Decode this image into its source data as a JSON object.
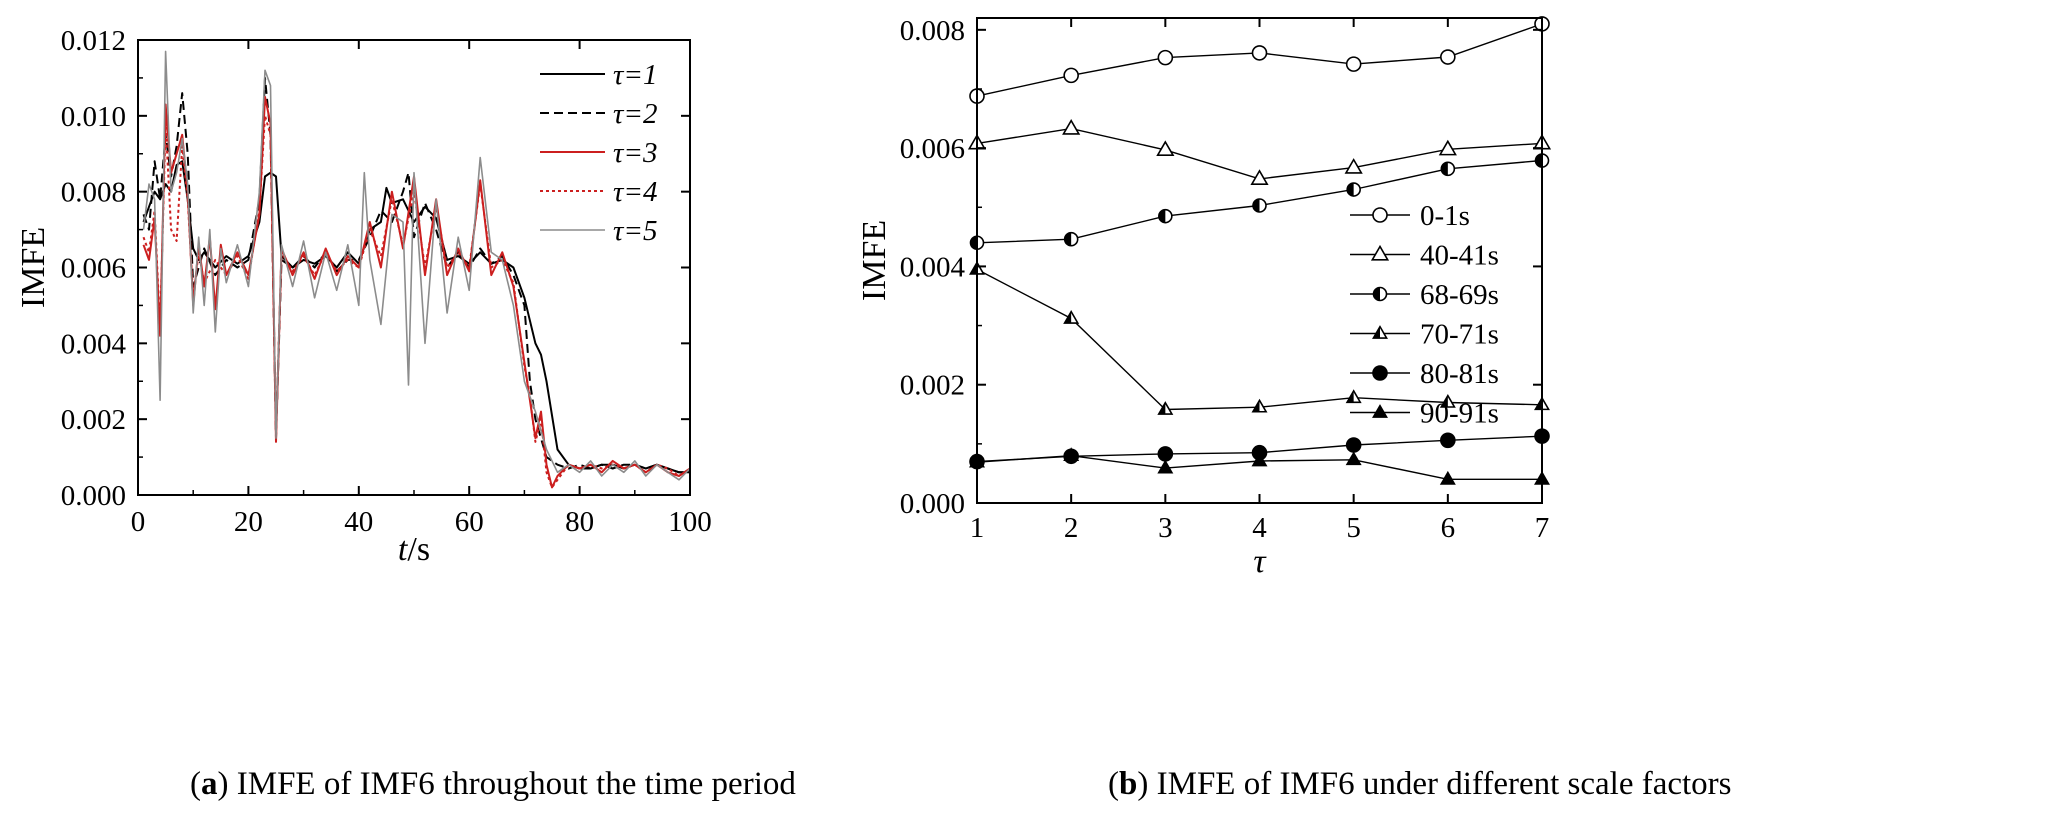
{
  "chart_data": [
    {
      "type": "line",
      "panel": "a",
      "xlabel_var": "t",
      "xlabel_unit": "/s",
      "ylabel": "IMFE",
      "xlim": [
        0,
        100
      ],
      "ylim": [
        0,
        0.012
      ],
      "xticks": [
        "0",
        "20",
        "40",
        "60",
        "80",
        "100"
      ],
      "yticks": [
        "0.000",
        "0.002",
        "0.004",
        "0.006",
        "0.008",
        "0.010",
        "0.012"
      ],
      "legend": [
        "τ=1",
        "τ=2",
        "τ=3",
        "τ=4",
        "τ=5"
      ],
      "colors": [
        "#000000",
        "#000000",
        "#cc1f1f",
        "#cc1f1f",
        "#8c8c8c"
      ],
      "series": [
        {
          "name": "τ=1",
          "x": [
            1,
            2,
            3,
            4,
            5,
            6,
            7,
            8,
            9,
            10,
            11,
            12,
            14,
            16,
            18,
            20,
            22,
            23,
            24,
            25,
            26,
            28,
            30,
            32,
            34,
            36,
            38,
            40,
            42,
            44,
            45,
            46,
            48,
            50,
            52,
            54,
            56,
            58,
            60,
            62,
            64,
            66,
            68,
            70,
            72,
            73,
            74,
            76,
            78,
            80,
            82,
            84,
            86,
            88,
            90,
            92,
            94,
            96,
            98,
            100
          ],
          "y": [
            0.0072,
            0.0076,
            0.008,
            0.0078,
            0.0082,
            0.008,
            0.0087,
            0.0088,
            0.0078,
            0.0065,
            0.0062,
            0.0064,
            0.006,
            0.0063,
            0.0061,
            0.0063,
            0.0072,
            0.0084,
            0.0085,
            0.0084,
            0.0063,
            0.006,
            0.0062,
            0.0061,
            0.0063,
            0.006,
            0.0064,
            0.0061,
            0.007,
            0.0072,
            0.0081,
            0.0077,
            0.0078,
            0.0072,
            0.0076,
            0.0073,
            0.0062,
            0.0063,
            0.0061,
            0.0064,
            0.0061,
            0.0062,
            0.006,
            0.0052,
            0.004,
            0.0037,
            0.003,
            0.0012,
            0.0008,
            0.0007,
            0.0007,
            0.0008,
            0.0008,
            0.0007,
            0.0008,
            0.0007,
            0.0008,
            0.0007,
            0.0006,
            0.0006
          ]
        },
        {
          "name": "τ=2",
          "x": [
            1,
            2,
            3,
            4,
            5,
            6,
            7,
            8,
            9,
            10,
            11,
            12,
            14,
            16,
            18,
            20,
            22,
            23,
            24,
            25,
            26,
            28,
            30,
            32,
            34,
            36,
            38,
            40,
            42,
            44,
            46,
            48,
            49,
            50,
            52,
            54,
            56,
            58,
            60,
            62,
            64,
            66,
            68,
            70,
            71,
            72,
            74,
            76,
            78,
            80,
            82,
            84,
            86,
            88,
            90,
            92,
            94,
            96,
            98,
            100
          ],
          "y": [
            0.0074,
            0.007,
            0.0088,
            0.0078,
            0.0095,
            0.0084,
            0.0092,
            0.0106,
            0.009,
            0.0055,
            0.006,
            0.0065,
            0.0058,
            0.0062,
            0.006,
            0.0062,
            0.0078,
            0.011,
            0.0095,
            0.0015,
            0.0062,
            0.006,
            0.0063,
            0.006,
            0.0064,
            0.0059,
            0.0062,
            0.0062,
            0.0068,
            0.0075,
            0.0072,
            0.008,
            0.0085,
            0.0068,
            0.0077,
            0.007,
            0.006,
            0.0064,
            0.006,
            0.0065,
            0.0061,
            0.0063,
            0.0058,
            0.005,
            0.003,
            0.002,
            0.001,
            0.0008,
            0.0007,
            0.0008,
            0.0007,
            0.0008,
            0.0007,
            0.0008,
            0.0008,
            0.0007,
            0.0008,
            0.0007,
            0.0006,
            0.0006
          ]
        },
        {
          "name": "τ=3",
          "x": [
            1,
            2,
            3,
            4,
            5,
            6,
            7,
            8,
            9,
            10,
            11,
            12,
            13,
            14,
            15,
            16,
            18,
            20,
            22,
            23,
            24,
            25,
            26,
            28,
            30,
            32,
            34,
            36,
            38,
            40,
            42,
            44,
            46,
            48,
            50,
            52,
            54,
            56,
            58,
            60,
            62,
            64,
            66,
            68,
            70,
            71,
            72,
            73,
            74,
            75,
            76,
            78,
            80,
            82,
            84,
            86,
            88,
            90,
            92,
            94,
            96,
            98,
            100
          ],
          "y": [
            0.0066,
            0.0062,
            0.0073,
            0.0042,
            0.0103,
            0.0085,
            0.009,
            0.0095,
            0.008,
            0.005,
            0.0066,
            0.0055,
            0.0068,
            0.0049,
            0.0066,
            0.0058,
            0.0064,
            0.0058,
            0.0074,
            0.0105,
            0.0098,
            0.0014,
            0.0065,
            0.0058,
            0.0064,
            0.0057,
            0.0065,
            0.0058,
            0.0063,
            0.006,
            0.0072,
            0.006,
            0.008,
            0.0065,
            0.0084,
            0.0058,
            0.0078,
            0.0058,
            0.0065,
            0.0059,
            0.0083,
            0.0058,
            0.0064,
            0.0055,
            0.0035,
            0.0025,
            0.0015,
            0.0022,
            0.0008,
            0.0002,
            0.0005,
            0.0008,
            0.0007,
            0.0008,
            0.0006,
            0.0009,
            0.0007,
            0.0008,
            0.0006,
            0.0008,
            0.0006,
            0.0005,
            0.0007
          ]
        },
        {
          "name": "τ=4",
          "x": [
            1,
            2,
            3,
            4,
            5,
            6,
            7,
            8,
            9,
            10,
            11,
            12,
            14,
            16,
            18,
            20,
            22,
            23,
            24,
            25,
            26,
            28,
            30,
            32,
            34,
            36,
            38,
            40,
            42,
            44,
            46,
            48,
            50,
            52,
            54,
            56,
            58,
            60,
            62,
            64,
            66,
            68,
            70,
            71,
            72,
            73,
            74,
            75,
            76,
            78,
            80,
            82,
            84,
            86,
            88,
            90,
            92,
            94,
            96,
            98,
            100
          ],
          "y": [
            0.0068,
            0.0064,
            0.0075,
            0.0044,
            0.0098,
            0.007,
            0.0067,
            0.0092,
            0.0078,
            0.0052,
            0.0064,
            0.0056,
            0.0062,
            0.0058,
            0.0063,
            0.0057,
            0.0075,
            0.01,
            0.0095,
            0.0016,
            0.0064,
            0.0059,
            0.0063,
            0.0058,
            0.0064,
            0.0059,
            0.0062,
            0.006,
            0.007,
            0.0063,
            0.0078,
            0.0066,
            0.008,
            0.006,
            0.0076,
            0.006,
            0.0064,
            0.006,
            0.0082,
            0.006,
            0.0062,
            0.0056,
            0.0034,
            0.0026,
            0.0014,
            0.002,
            0.0006,
            0.0002,
            0.0004,
            0.0008,
            0.0007,
            0.0008,
            0.0007,
            0.0008,
            0.0007,
            0.0008,
            0.0006,
            0.0008,
            0.0007,
            0.0005,
            0.0007
          ]
        },
        {
          "name": "τ=5",
          "x": [
            1,
            2,
            3,
            4,
            5,
            6,
            7,
            8,
            9,
            10,
            11,
            12,
            13,
            14,
            15,
            16,
            18,
            20,
            22,
            23,
            24,
            25,
            26,
            28,
            30,
            32,
            34,
            36,
            38,
            40,
            41,
            42,
            44,
            46,
            48,
            49,
            50,
            52,
            54,
            56,
            58,
            60,
            62,
            64,
            66,
            68,
            70,
            72,
            74,
            76,
            78,
            80,
            82,
            84,
            86,
            88,
            90,
            92,
            94,
            96,
            98,
            100
          ],
          "y": [
            0.007,
            0.0082,
            0.0078,
            0.0025,
            0.0117,
            0.008,
            0.0085,
            0.0094,
            0.0082,
            0.0048,
            0.0068,
            0.005,
            0.007,
            0.0043,
            0.0065,
            0.0056,
            0.0066,
            0.0055,
            0.008,
            0.0112,
            0.0108,
            0.0015,
            0.0066,
            0.0055,
            0.0067,
            0.0052,
            0.0064,
            0.0054,
            0.0066,
            0.005,
            0.0085,
            0.0062,
            0.0045,
            0.0074,
            0.0072,
            0.0029,
            0.0085,
            0.004,
            0.0078,
            0.0048,
            0.0068,
            0.0054,
            0.0089,
            0.0064,
            0.0062,
            0.005,
            0.003,
            0.0022,
            0.0012,
            0.0006,
            0.0008,
            0.0006,
            0.0009,
            0.0005,
            0.0008,
            0.0006,
            0.0009,
            0.0005,
            0.0008,
            0.0006,
            0.0004,
            0.0007
          ]
        }
      ],
      "caption_label": "a",
      "caption_text": "IMFE of IMF6 throughout the time period"
    },
    {
      "type": "line",
      "panel": "b",
      "xlabel_var": "τ",
      "ylabel": "IMFE",
      "xlim": [
        1,
        7
      ],
      "ylim": [
        0,
        0.0082
      ],
      "xticks": [
        "1",
        "2",
        "3",
        "4",
        "5",
        "6",
        "7"
      ],
      "yticks": [
        "0.000",
        "0.002",
        "0.004",
        "0.006",
        "0.008"
      ],
      "x": [
        1,
        2,
        3,
        4,
        5,
        6,
        7
      ],
      "series": [
        {
          "name": "0-1s",
          "marker": "circle-open",
          "values": [
            0.00688,
            0.00723,
            0.00753,
            0.00761,
            0.00742,
            0.00754,
            0.0081
          ]
        },
        {
          "name": "40-41s",
          "marker": "triangle-open",
          "values": [
            0.00608,
            0.00633,
            0.00597,
            0.00548,
            0.00567,
            0.00598,
            0.00608
          ]
        },
        {
          "name": "68-69s",
          "marker": "circle-half",
          "values": [
            0.0044,
            0.00446,
            0.00485,
            0.00503,
            0.0053,
            0.00565,
            0.00579
          ]
        },
        {
          "name": "70-71s",
          "marker": "triangle-half",
          "values": [
            0.00395,
            0.00312,
            0.00158,
            0.00162,
            0.00178,
            0.0017,
            0.00166
          ]
        },
        {
          "name": "80-81s",
          "marker": "circle-filled",
          "values": [
            0.0007,
            0.00079,
            0.00083,
            0.00085,
            0.00098,
            0.00106,
            0.00113
          ]
        },
        {
          "name": "90-91s",
          "marker": "triangle-filled",
          "values": [
            0.00069,
            0.0008,
            0.00059,
            0.00071,
            0.00073,
            0.0004,
            0.0004
          ]
        }
      ],
      "caption_label": "b",
      "caption_text": "IMFE of IMF6 under different scale factors"
    }
  ]
}
